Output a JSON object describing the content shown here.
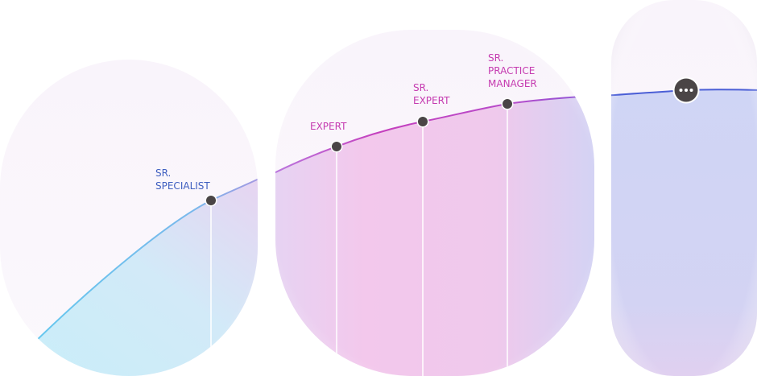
{
  "career_path": {
    "milestones": [
      {
        "id": "sr-specialist",
        "lines": [
          "SR.",
          "SPECIALIST"
        ],
        "color": "#3f5fc0"
      },
      {
        "id": "expert",
        "lines": [
          "EXPERT"
        ],
        "color": "#c53bb0"
      },
      {
        "id": "sr-expert",
        "lines": [
          "SR.",
          "EXPERT"
        ],
        "color": "#c53bb0"
      },
      {
        "id": "sr-practice-manager",
        "lines": [
          "SR.",
          "PRACTICE",
          "MANAGER"
        ],
        "color": "#c53bb0"
      }
    ],
    "more_button": {
      "icon": "more-icon"
    },
    "colors": {
      "curve_start": "#66c8ee",
      "curve_mid": "#c55bd2",
      "curve_end": "#4b5fd6",
      "fill_cyan": "#c8eef9",
      "fill_pink": "#f3c8ec",
      "fill_blue": "#cfd5f5",
      "node": "#4a4546"
    }
  }
}
